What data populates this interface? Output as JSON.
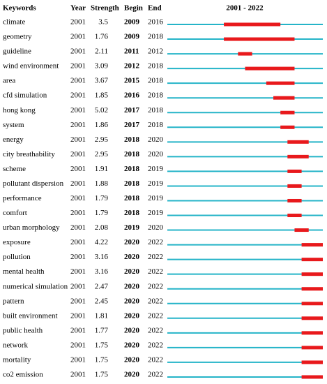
{
  "table": {
    "headers": {
      "keyword": "Keywords",
      "year": "Year",
      "strength": "Strength",
      "begin": "Begin",
      "end": "End",
      "timeline": "2001 - 2022"
    },
    "timeline": {
      "start": 2001,
      "end": 2022
    },
    "rows": [
      {
        "keyword": "climate",
        "year": 2001,
        "strength": 3.5,
        "begin": 2009,
        "end": 2016
      },
      {
        "keyword": "geometry",
        "year": 2001,
        "strength": 1.76,
        "begin": 2009,
        "end": 2018
      },
      {
        "keyword": "guideline",
        "year": 2001,
        "strength": 2.11,
        "begin": 2011,
        "end": 2012
      },
      {
        "keyword": "wind environment",
        "year": 2001,
        "strength": 3.09,
        "begin": 2012,
        "end": 2018
      },
      {
        "keyword": "area",
        "year": 2001,
        "strength": 3.67,
        "begin": 2015,
        "end": 2018
      },
      {
        "keyword": "cfd simulation",
        "year": 2001,
        "strength": 1.85,
        "begin": 2016,
        "end": 2018
      },
      {
        "keyword": "hong kong",
        "year": 2001,
        "strength": 5.02,
        "begin": 2017,
        "end": 2018
      },
      {
        "keyword": "system",
        "year": 2001,
        "strength": 1.86,
        "begin": 2017,
        "end": 2018
      },
      {
        "keyword": "energy",
        "year": 2001,
        "strength": 2.95,
        "begin": 2018,
        "end": 2020
      },
      {
        "keyword": "city breathability",
        "year": 2001,
        "strength": 2.95,
        "begin": 2018,
        "end": 2020
      },
      {
        "keyword": "scheme",
        "year": 2001,
        "strength": 1.91,
        "begin": 2018,
        "end": 2019
      },
      {
        "keyword": "pollutant dispersion",
        "year": 2001,
        "strength": 1.88,
        "begin": 2018,
        "end": 2019
      },
      {
        "keyword": "performance",
        "year": 2001,
        "strength": 1.79,
        "begin": 2018,
        "end": 2019
      },
      {
        "keyword": "comfort",
        "year": 2001,
        "strength": 1.79,
        "begin": 2018,
        "end": 2019
      },
      {
        "keyword": "urban morphology",
        "year": 2001,
        "strength": 2.08,
        "begin": 2019,
        "end": 2020
      },
      {
        "keyword": "exposure",
        "year": 2001,
        "strength": 4.22,
        "begin": 2020,
        "end": 2022
      },
      {
        "keyword": "pollution",
        "year": 2001,
        "strength": 3.16,
        "begin": 2020,
        "end": 2022
      },
      {
        "keyword": "mental health",
        "year": 2001,
        "strength": 3.16,
        "begin": 2020,
        "end": 2022
      },
      {
        "keyword": "numerical simulation",
        "year": 2001,
        "strength": 2.47,
        "begin": 2020,
        "end": 2022
      },
      {
        "keyword": "pattern",
        "year": 2001,
        "strength": 2.45,
        "begin": 2020,
        "end": 2022
      },
      {
        "keyword": "built environment",
        "year": 2001,
        "strength": 1.81,
        "begin": 2020,
        "end": 2022
      },
      {
        "keyword": "public health",
        "year": 2001,
        "strength": 1.77,
        "begin": 2020,
        "end": 2022
      },
      {
        "keyword": "network",
        "year": 2001,
        "strength": 1.75,
        "begin": 2020,
        "end": 2022
      },
      {
        "keyword": "mortality",
        "year": 2001,
        "strength": 1.75,
        "begin": 2020,
        "end": 2022
      },
      {
        "keyword": "co2 emission",
        "year": 2001,
        "strength": 1.75,
        "begin": 2020,
        "end": 2022
      }
    ]
  }
}
